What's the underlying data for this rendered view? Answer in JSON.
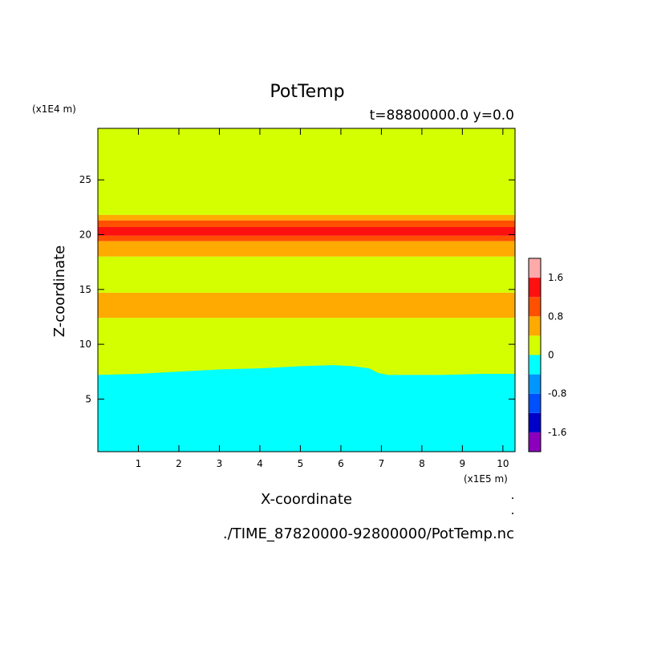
{
  "chart_data": {
    "type": "heatmap",
    "title": "PotTemp",
    "subtitle": "t=88800000.0 y=0.0",
    "xlabel": "X-coordinate",
    "ylabel": "Z-coordinate",
    "x_unit": "(x1E5 m)",
    "y_unit": "(x1E4 m)",
    "xlim": [
      0,
      10.3
    ],
    "ylim": [
      0.2,
      29.7
    ],
    "x_ticks": [
      1,
      2,
      3,
      4,
      5,
      6,
      7,
      8,
      9,
      10
    ],
    "y_ticks": [
      5,
      10,
      15,
      20,
      25
    ],
    "grid": false,
    "footer": "./TIME_87820000-92800000/PotTemp.nc",
    "colorbar": {
      "levels": [
        -2.0,
        -1.6,
        -1.2,
        -0.8,
        -0.4,
        0,
        0.4,
        0.8,
        1.2,
        1.6,
        2.0
      ],
      "colors": [
        "#8a00bd",
        "#0000c8",
        "#0050ff",
        "#0096ff",
        "#00ffff",
        "#d4ff00",
        "#ffaa00",
        "#ff5000",
        "#ff1010",
        "#ffaaaa"
      ],
      "tick_labels": [
        "-1.6",
        "-0.8",
        "0",
        "0.8",
        "1.6"
      ],
      "tick_values": [
        -1.6,
        -0.8,
        0,
        0.8,
        1.6
      ]
    },
    "bands": [
      {
        "z_bottom": 21.8,
        "z_top": 29.7,
        "color": "#d4ff00"
      },
      {
        "z_bottom": 21.3,
        "z_top": 21.8,
        "color": "#ffaa00"
      },
      {
        "z_bottom": 20.7,
        "z_top": 21.3,
        "color": "#ff5000"
      },
      {
        "z_bottom": 19.9,
        "z_top": 20.7,
        "color": "#ff1010"
      },
      {
        "z_bottom": 19.4,
        "z_top": 19.9,
        "color": "#ff5000"
      },
      {
        "z_bottom": 18.0,
        "z_top": 19.4,
        "color": "#ffaa00"
      },
      {
        "z_bottom": 14.7,
        "z_top": 18.0,
        "color": "#d4ff00"
      },
      {
        "z_bottom": 12.4,
        "z_top": 14.7,
        "color": "#ffaa00"
      },
      {
        "z_bottom": 7.2,
        "z_top": 12.4,
        "color": "#d4ff00"
      },
      {
        "z_bottom": 0.2,
        "z_top": 7.2,
        "color": "#00ffff"
      }
    ],
    "cyan_boundary": {
      "x": [
        0,
        1,
        2,
        3,
        4,
        5,
        5.8,
        6.3,
        6.7,
        6.9,
        7.3,
        7.8,
        8.5,
        9.5,
        10.3
      ],
      "z": [
        7.2,
        7.3,
        7.5,
        7.7,
        7.8,
        8.0,
        8.1,
        8.0,
        7.8,
        7.4,
        7.1,
        7.1,
        7.2,
        7.3,
        7.3
      ]
    }
  }
}
